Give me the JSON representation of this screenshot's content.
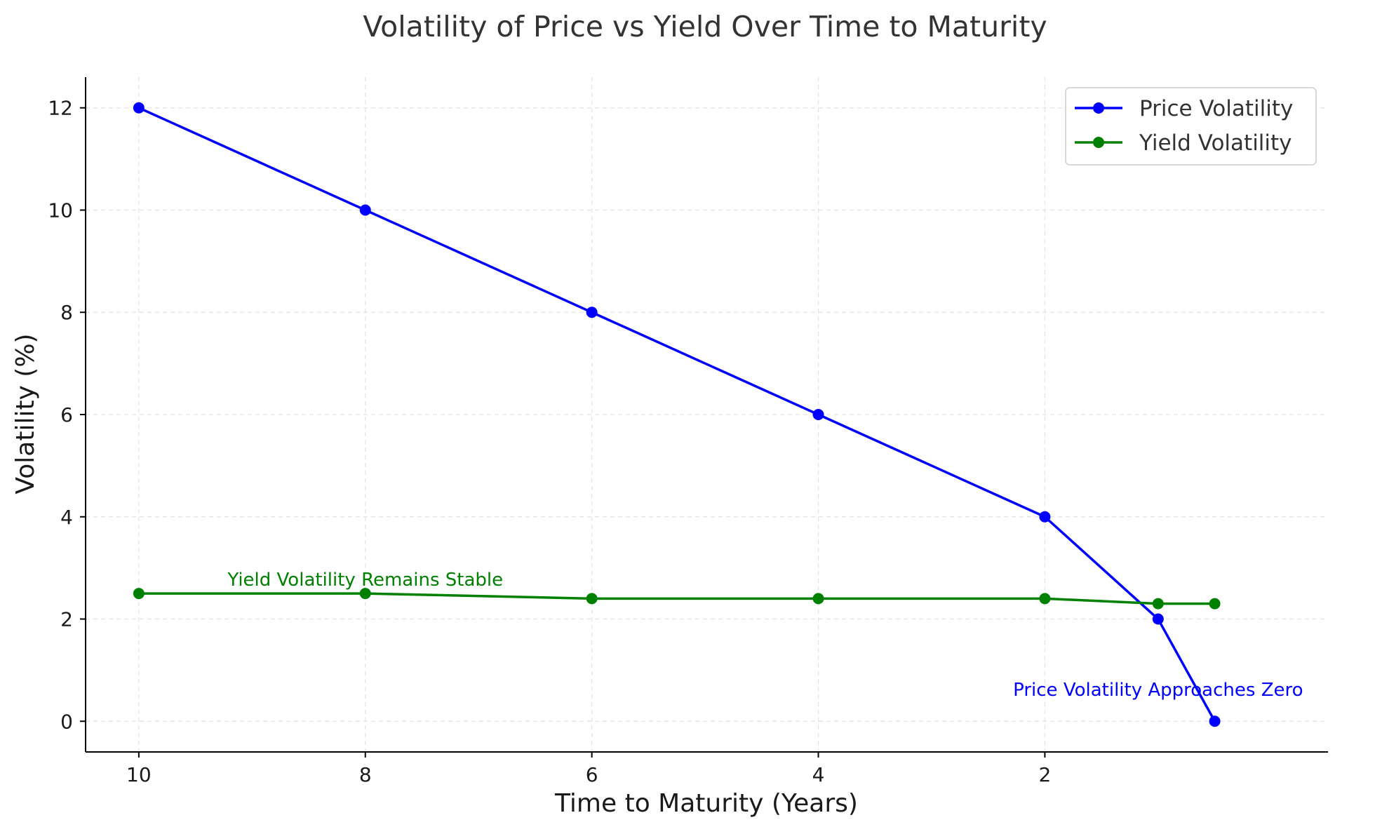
{
  "chart_data": {
    "type": "line",
    "title": "Volatility of Price vs Yield Over Time to Maturity",
    "xlabel": "Time to Maturity (Years)",
    "ylabel": "Volatility (%)",
    "x": [
      10,
      8,
      6,
      4,
      2,
      1,
      0.5
    ],
    "xlim": [
      10.47,
      -0.5
    ],
    "ylim": [
      -0.6,
      12.6
    ],
    "x_ticks": [
      10,
      8,
      6,
      4,
      2
    ],
    "y_ticks": [
      0,
      2,
      4,
      6,
      8,
      10,
      12
    ],
    "grid": true,
    "legend_position": "top-right",
    "series": [
      {
        "name": "Price Volatility",
        "color": "#0000ff",
        "values": [
          12,
          10,
          8,
          6,
          4,
          2,
          0
        ]
      },
      {
        "name": "Yield Volatility",
        "color": "#008000",
        "values": [
          2.5,
          2.5,
          2.4,
          2.4,
          2.4,
          2.3,
          2.3
        ]
      }
    ],
    "annotations": [
      {
        "text": "Yield Volatility Remains Stable",
        "x": 8,
        "y": 2.65,
        "color": "#008000"
      },
      {
        "text": "Price Volatility Approaches Zero",
        "x": 1,
        "y": 0.5,
        "color": "#0000ff"
      }
    ]
  }
}
